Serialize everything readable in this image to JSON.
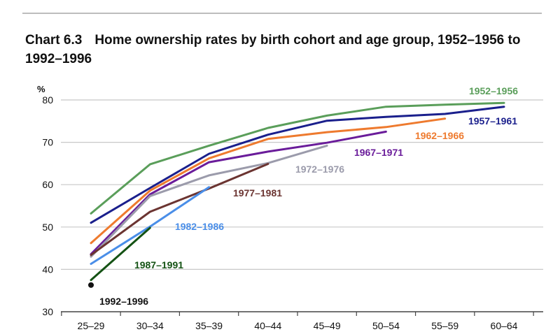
{
  "header": {
    "chart_number": "Chart 6.3",
    "title": "Home ownership rates by birth cohort and age group, 1952–1956 to 1992–1996"
  },
  "chart_data": {
    "type": "line",
    "title": "Home ownership rates by birth cohort and age group, 1952–1956 to 1992–1996",
    "ylabel": "%",
    "xlabel": "",
    "categories": [
      "25–29",
      "30–34",
      "35–39",
      "40–44",
      "45–49",
      "50–54",
      "55–59",
      "60–64"
    ],
    "yticks": [
      "30",
      "40",
      "50",
      "60",
      "70",
      "80"
    ],
    "ylim": [
      30,
      80
    ],
    "grid": true,
    "legend": "inline labels",
    "series": [
      {
        "name": "1952–1956",
        "color": "#5a9e5a",
        "values": [
          53.2,
          64.8,
          69.2,
          73.4,
          76.3,
          78.4,
          78.9,
          79.3
        ]
      },
      {
        "name": "1957–1961",
        "color": "#1a1f8c",
        "values": [
          51.0,
          59.2,
          67.3,
          71.8,
          75.1,
          76.0,
          76.7,
          78.4
        ]
      },
      {
        "name": "1962–1966",
        "color": "#ee7a2e",
        "values": [
          46.2,
          58.6,
          66.2,
          70.8,
          72.4,
          73.6,
          75.6,
          null
        ]
      },
      {
        "name": "1967–1971",
        "color": "#6a1c9a",
        "values": [
          43.6,
          57.7,
          65.3,
          67.8,
          69.9,
          72.5,
          null,
          null
        ]
      },
      {
        "name": "1972–1976",
        "color": "#9b9bab",
        "values": [
          43.0,
          57.3,
          62.2,
          65.1,
          69.2,
          null,
          null,
          null
        ]
      },
      {
        "name": "1977–1981",
        "color": "#6b3431",
        "values": [
          43.4,
          53.6,
          59.1,
          64.9,
          null,
          null,
          null,
          null
        ]
      },
      {
        "name": "1982–1986",
        "color": "#4a8ee8",
        "values": [
          41.3,
          50.1,
          59.4,
          null,
          null,
          null,
          null,
          null
        ]
      },
      {
        "name": "1987–1991",
        "color": "#145214",
        "values": [
          37.5,
          49.8,
          null,
          null,
          null,
          null,
          null,
          null
        ]
      },
      {
        "name": "1992–1996",
        "color": "#111111",
        "values": [
          36.3,
          null,
          null,
          null,
          null,
          null,
          null,
          null
        ]
      }
    ]
  }
}
